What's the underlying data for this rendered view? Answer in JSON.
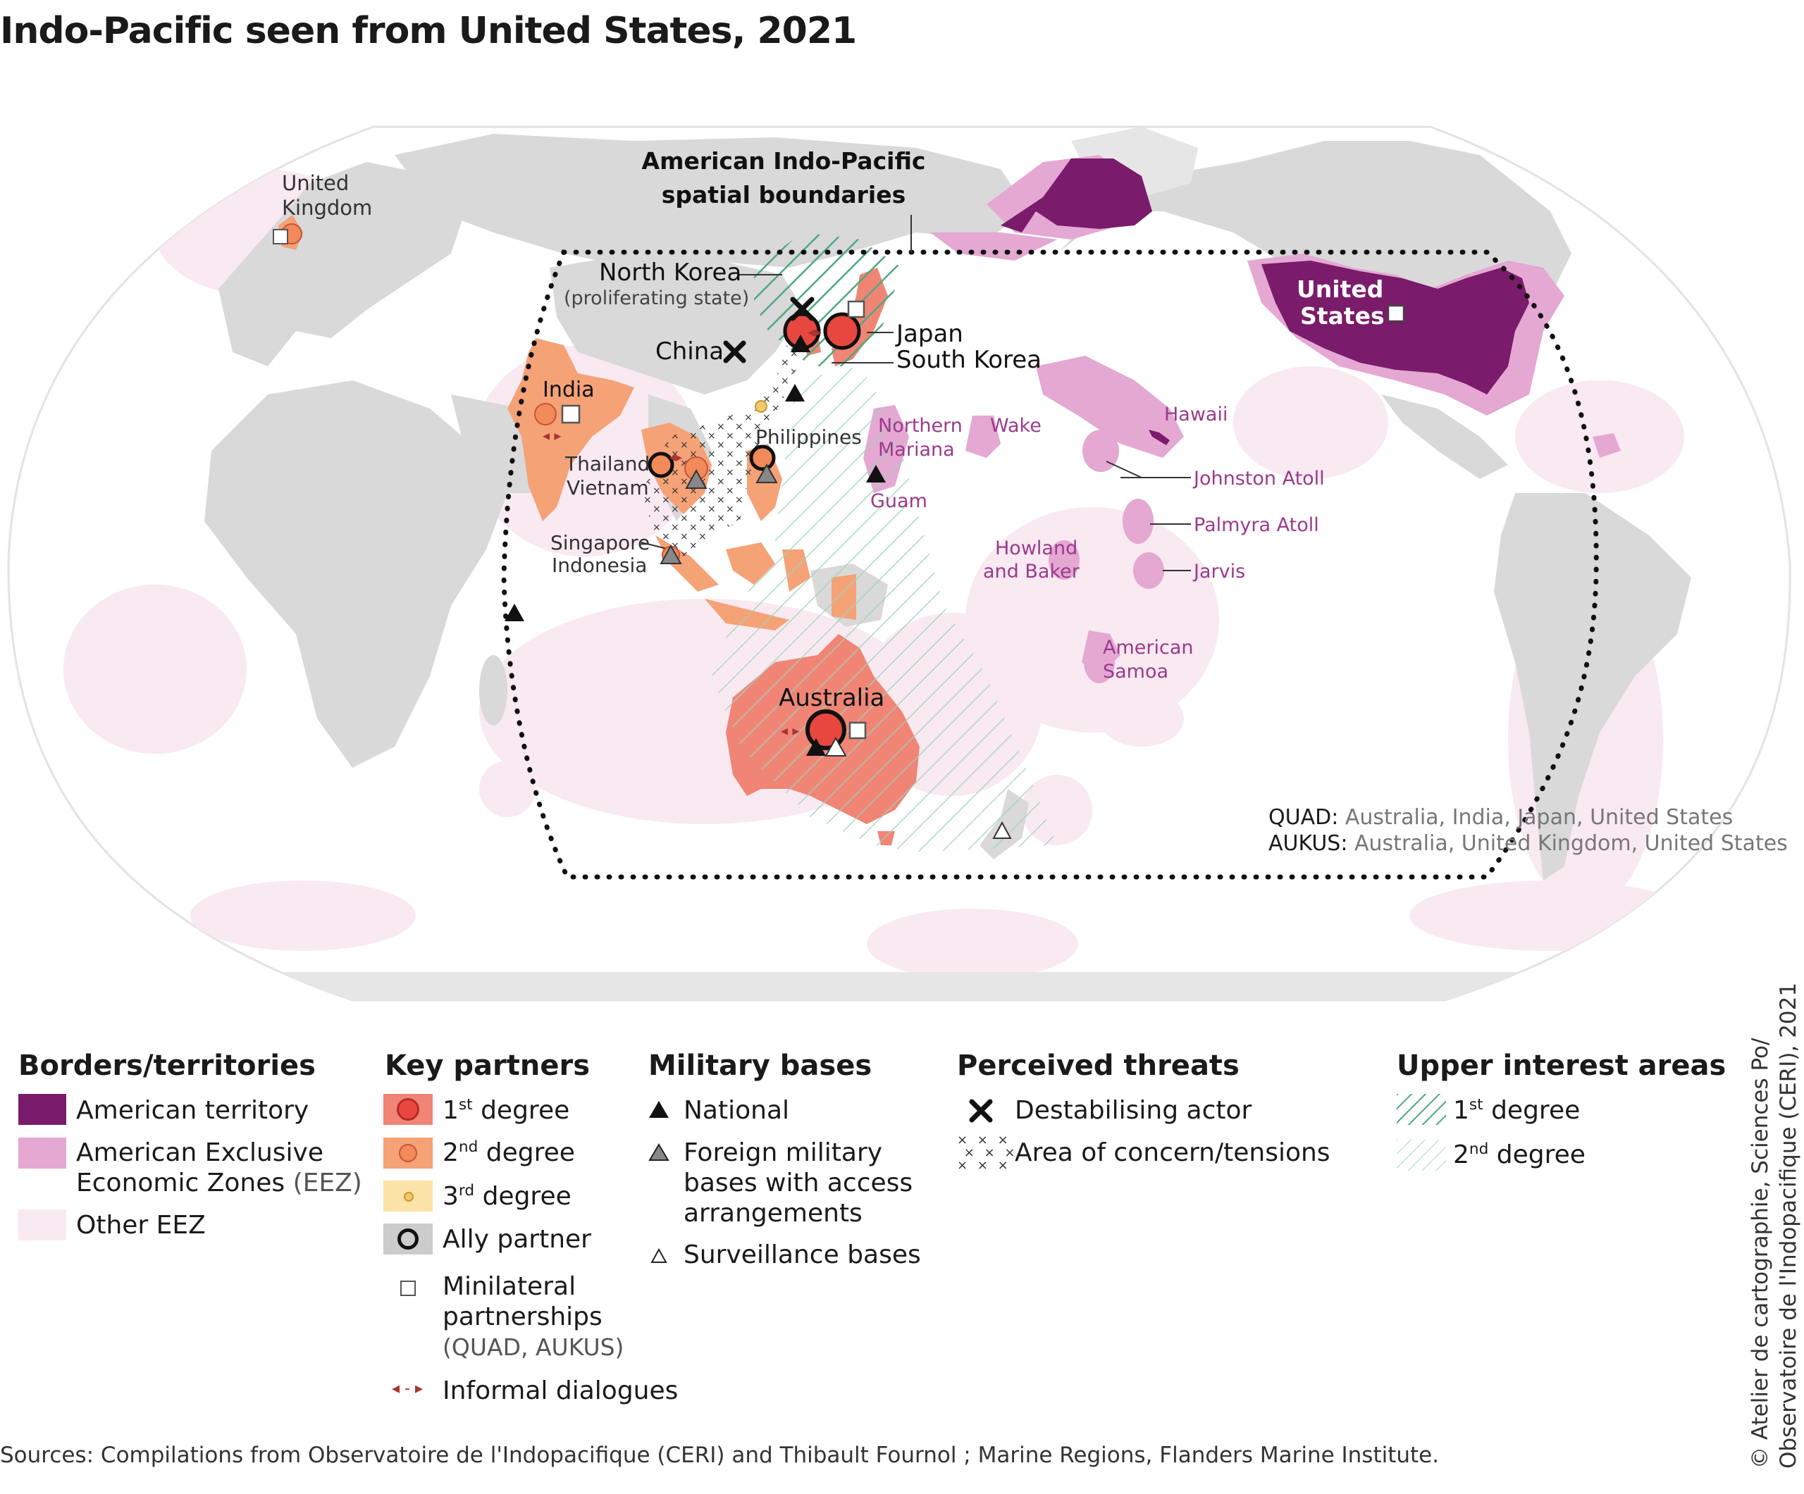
{
  "title": "Indo-Pacific seen from United States, 2021",
  "colors": {
    "american_territory": "#7b1b6b",
    "american_eez": "#e4a8d2",
    "other_eez": "#f9e9f1",
    "land": "#d9d9d9",
    "first_degree": "#e8473f",
    "second_degree": "#f28a5a",
    "third_degree": "#f5c86b",
    "partner_country_1st": "#f08576",
    "partner_country_2nd": "#f5a277",
    "upper_interest": "#5fb48a"
  },
  "map": {
    "boundary_label_1": "American Indo-Pacific",
    "boundary_label_2": "spatial boundaries",
    "labels": {
      "united_kingdom_1": "United",
      "united_kingdom_2": "Kingdom",
      "north_korea": "North Korea",
      "north_korea_note": "(proliferating state)",
      "china": "China",
      "japan": "Japan",
      "south_korea": "South Korea",
      "india": "India",
      "philippines": "Philippines",
      "thailand": "Thailand",
      "vietnam": "Vietnam",
      "singapore": "Singapore",
      "indonesia": "Indonesia",
      "australia": "Australia",
      "united_states_1": "United",
      "united_states_2": "States",
      "northern_mariana_1": "Northern",
      "northern_mariana_2": "Mariana",
      "wake": "Wake",
      "hawaii": "Hawaii",
      "johnston_atoll": "Johnston Atoll",
      "palmyra_atoll": "Palmyra Atoll",
      "jarvis": "Jarvis",
      "guam": "Guam",
      "howland_1": "Howland",
      "howland_2": "and Baker",
      "american_samoa_1": "American",
      "american_samoa_2": "Samoa"
    },
    "quad_label": "QUAD:",
    "quad_members": "Australia, India, Japan, United States",
    "aukus_label": "AUKUS:",
    "aukus_members": "Australia, United Kingdom, United States"
  },
  "legend": {
    "borders": {
      "heading": "Borders/territories",
      "american_territory": "American territory",
      "american_eez_1": "American Exclusive",
      "american_eez_2": "Economic Zones",
      "american_eez_abbr": "(EEZ)",
      "other_eez": "Other EEZ"
    },
    "partners": {
      "heading": "Key partners",
      "first_num": "1",
      "first_sup": "st",
      "first_txt": "degree",
      "second_num": "2",
      "second_sup": "nd",
      "second_txt": "degree",
      "third_num": "3",
      "third_sup": "rd",
      "third_txt": "degree",
      "ally": "Ally partner",
      "minilateral_1": "Minilateral",
      "minilateral_2": "partnerships",
      "minilateral_3": "(QUAD, AUKUS)",
      "informal": "Informal dialogues"
    },
    "bases": {
      "heading": "Military bases",
      "national": "National",
      "foreign_1": "Foreign military",
      "foreign_2": "bases with access",
      "foreign_3": "arrangements",
      "surveillance": "Surveillance bases"
    },
    "threats": {
      "heading": "Perceived threats",
      "destabilising": "Destabilising actor",
      "area": "Area of concern/tensions"
    },
    "interest": {
      "heading": "Upper interest areas",
      "first_num": "1",
      "first_sup": "st",
      "first_txt": "degree",
      "second_num": "2",
      "second_sup": "nd",
      "second_txt": "degree"
    }
  },
  "sources": "Sources: Compilations from Observatoire de l'Indopacifique (CERI) and Thibault Fournol ; Marine Regions, Flanders Marine Institute.",
  "credit_1": "© Atelier de cartographie, Sciences Po/",
  "credit_2": "Observatoire de l'Indopacifique (CERI), 2021"
}
